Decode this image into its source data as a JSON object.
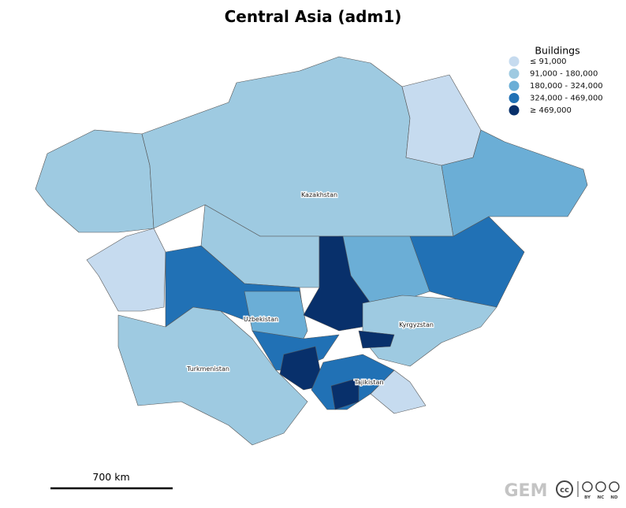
{
  "title": "Central Asia (adm1)",
  "legend": {
    "title": "Buildings",
    "items": [
      {
        "label": "≤ 91,000",
        "color": "#c6dbef"
      },
      {
        "label": "91,000 - 180,000",
        "color": "#9ecae1"
      },
      {
        "label": "180,000 - 324,000",
        "color": "#6baed6"
      },
      {
        "label": "324,000 - 469,000",
        "color": "#2171b5"
      },
      {
        "label": "≥ 469,000",
        "color": "#08306b"
      }
    ]
  },
  "countries": [
    "Kazakhstan",
    "Uzbekistan",
    "Kyrgyzstan",
    "Tajikistan",
    "Turkmenistan"
  ],
  "scale_bar": "700 km",
  "logo": "GEM",
  "license": [
    "BY",
    "NC",
    "ND"
  ]
}
